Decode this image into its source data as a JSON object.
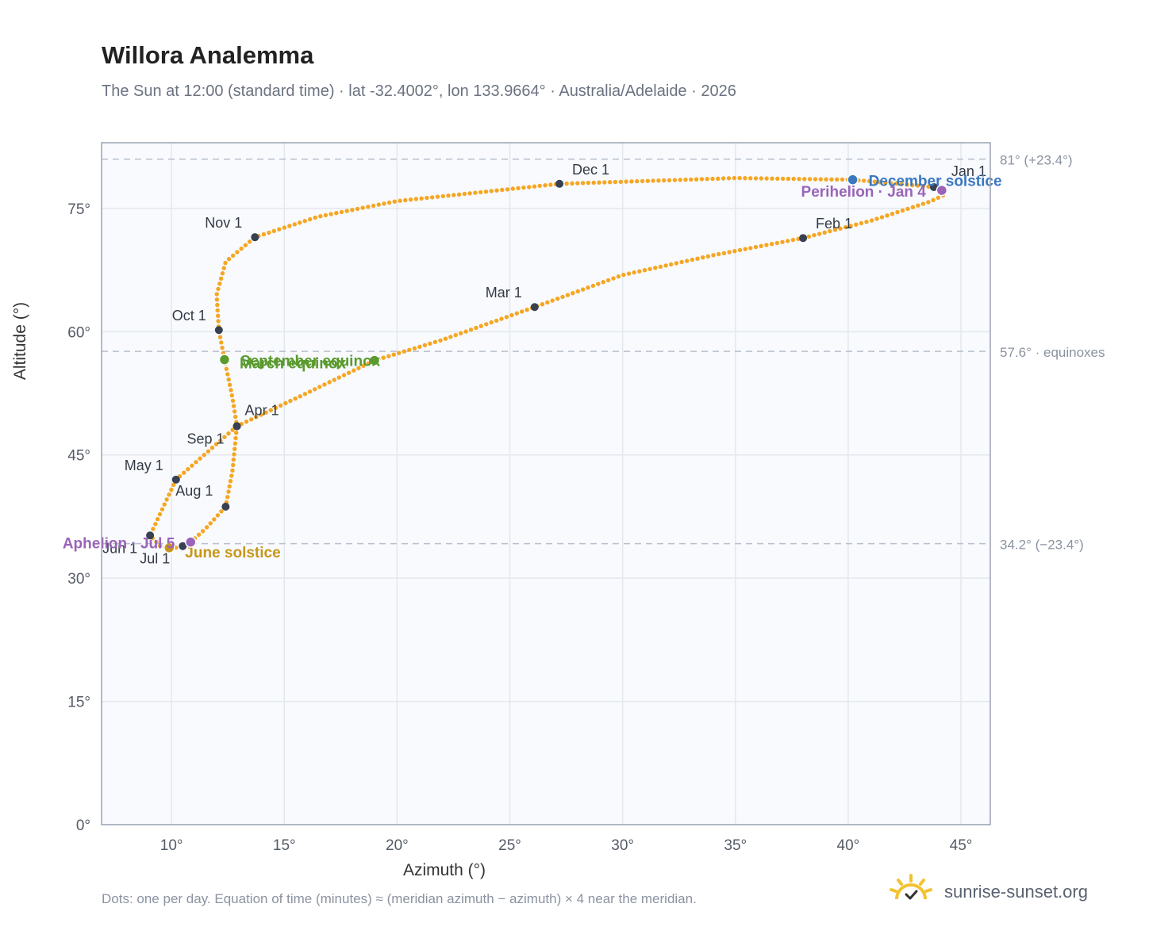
{
  "header": {
    "title": "Willora Analemma",
    "subtitle": "The Sun at 12:00 (standard time) · lat -32.4002°, lon 133.9664° · Australia/Adelaide · 2026"
  },
  "footer": {
    "note": "Dots: one per day. Equation of time (minutes) ≈ (meridian azimuth − azimuth) × 4 near the meridian.",
    "brand": "sunrise-sunset.org"
  },
  "colors": {
    "curve": "#f5a623",
    "month_marker": "#374151",
    "equinox": "#5a9a2f",
    "december_solstice": "#3a78c0",
    "june_solstice": "#c8961a",
    "apsis": "#9a64b8",
    "reference_line": "#b8c0cc",
    "plot_background": "#f8fafd"
  },
  "chart_data": {
    "type": "scatter",
    "title": "Willora Analemma",
    "xlabel": "Azimuth (°)",
    "ylabel": "Altitude (°)",
    "xlim": [
      6.9,
      46.3
    ],
    "ylim": [
      0,
      83
    ],
    "x_ticks": [
      10,
      15,
      20,
      25,
      30,
      35,
      40,
      45
    ],
    "x_tick_labels": [
      "10°",
      "15°",
      "20°",
      "25°",
      "30°",
      "35°",
      "40°",
      "45°"
    ],
    "y_ticks": [
      0,
      15,
      30,
      45,
      60,
      75
    ],
    "y_tick_labels": [
      "0°",
      "15°",
      "30°",
      "45°",
      "60°",
      "75°"
    ],
    "grid": true,
    "reference_lines": [
      {
        "y": 81.0,
        "label": "81° (+23.4°)"
      },
      {
        "y": 57.6,
        "label": "57.6° · equinoxes"
      },
      {
        "y": 34.2,
        "label": "34.2° (−23.4°)"
      }
    ],
    "series": [
      {
        "points_per": "day",
        "path": [
          [
            43.8,
            77.6
          ],
          [
            44.15,
            77.2
          ],
          [
            44.3,
            76.7
          ],
          [
            43.6,
            75.8
          ],
          [
            41.0,
            73.5
          ],
          [
            38.0,
            71.4
          ],
          [
            34.0,
            69.3
          ],
          [
            30.0,
            66.9
          ],
          [
            26.1,
            63.0
          ],
          [
            22.0,
            59.0
          ],
          [
            19.0,
            56.5
          ],
          [
            15.6,
            52.0
          ],
          [
            12.9,
            48.5
          ],
          [
            10.2,
            42.0
          ],
          [
            9.05,
            35.2
          ],
          [
            9.5,
            33.9
          ],
          [
            10.0,
            33.6
          ],
          [
            10.5,
            33.9
          ],
          [
            10.85,
            34.4
          ],
          [
            11.5,
            36.0
          ],
          [
            12.4,
            38.7
          ],
          [
            12.7,
            43.0
          ],
          [
            12.9,
            48.5
          ],
          [
            12.7,
            52.0
          ],
          [
            12.35,
            56.6
          ],
          [
            12.1,
            60.2
          ],
          [
            12.0,
            64.5
          ],
          [
            12.4,
            68.5
          ],
          [
            13.7,
            71.5
          ],
          [
            16.5,
            74.0
          ],
          [
            20.0,
            75.9
          ],
          [
            27.2,
            78.0
          ],
          [
            35.0,
            78.7
          ],
          [
            40.2,
            78.5
          ],
          [
            43.8,
            77.6
          ]
        ]
      }
    ],
    "month_markers": [
      {
        "label": "Jan 1",
        "x": 43.8,
        "y": 77.6
      },
      {
        "label": "Feb 1",
        "x": 38.0,
        "y": 71.4
      },
      {
        "label": "Mar 1",
        "x": 26.1,
        "y": 63.0
      },
      {
        "label": "Apr 1",
        "x": 12.9,
        "y": 48.5
      },
      {
        "label": "May 1",
        "x": 10.2,
        "y": 42.0
      },
      {
        "label": "Jun 1",
        "x": 9.05,
        "y": 35.2
      },
      {
        "label": "Jul 1",
        "x": 10.5,
        "y": 33.9
      },
      {
        "label": "Aug 1",
        "x": 12.4,
        "y": 38.7
      },
      {
        "label": "Sep 1",
        "x": 12.9,
        "y": 48.5
      },
      {
        "label": "Oct 1",
        "x": 12.1,
        "y": 60.2
      },
      {
        "label": "Nov 1",
        "x": 13.7,
        "y": 71.5
      },
      {
        "label": "Dec 1",
        "x": 27.2,
        "y": 78.0
      }
    ],
    "events": [
      {
        "label": "March equinox",
        "x": 19.0,
        "y": 56.5,
        "kind": "equinox"
      },
      {
        "label": "September equinox",
        "x": 12.35,
        "y": 56.6,
        "kind": "equinox"
      },
      {
        "label": "December solstice",
        "x": 40.2,
        "y": 78.5,
        "kind": "december_solstice"
      },
      {
        "label": "June solstice",
        "x": 9.9,
        "y": 33.7,
        "kind": "june_solstice"
      },
      {
        "label": "Perihelion · Jan 4",
        "x": 44.15,
        "y": 77.2,
        "kind": "apsis"
      },
      {
        "label": "Aphelion · Jul 5",
        "x": 10.85,
        "y": 34.4,
        "kind": "apsis"
      }
    ]
  }
}
